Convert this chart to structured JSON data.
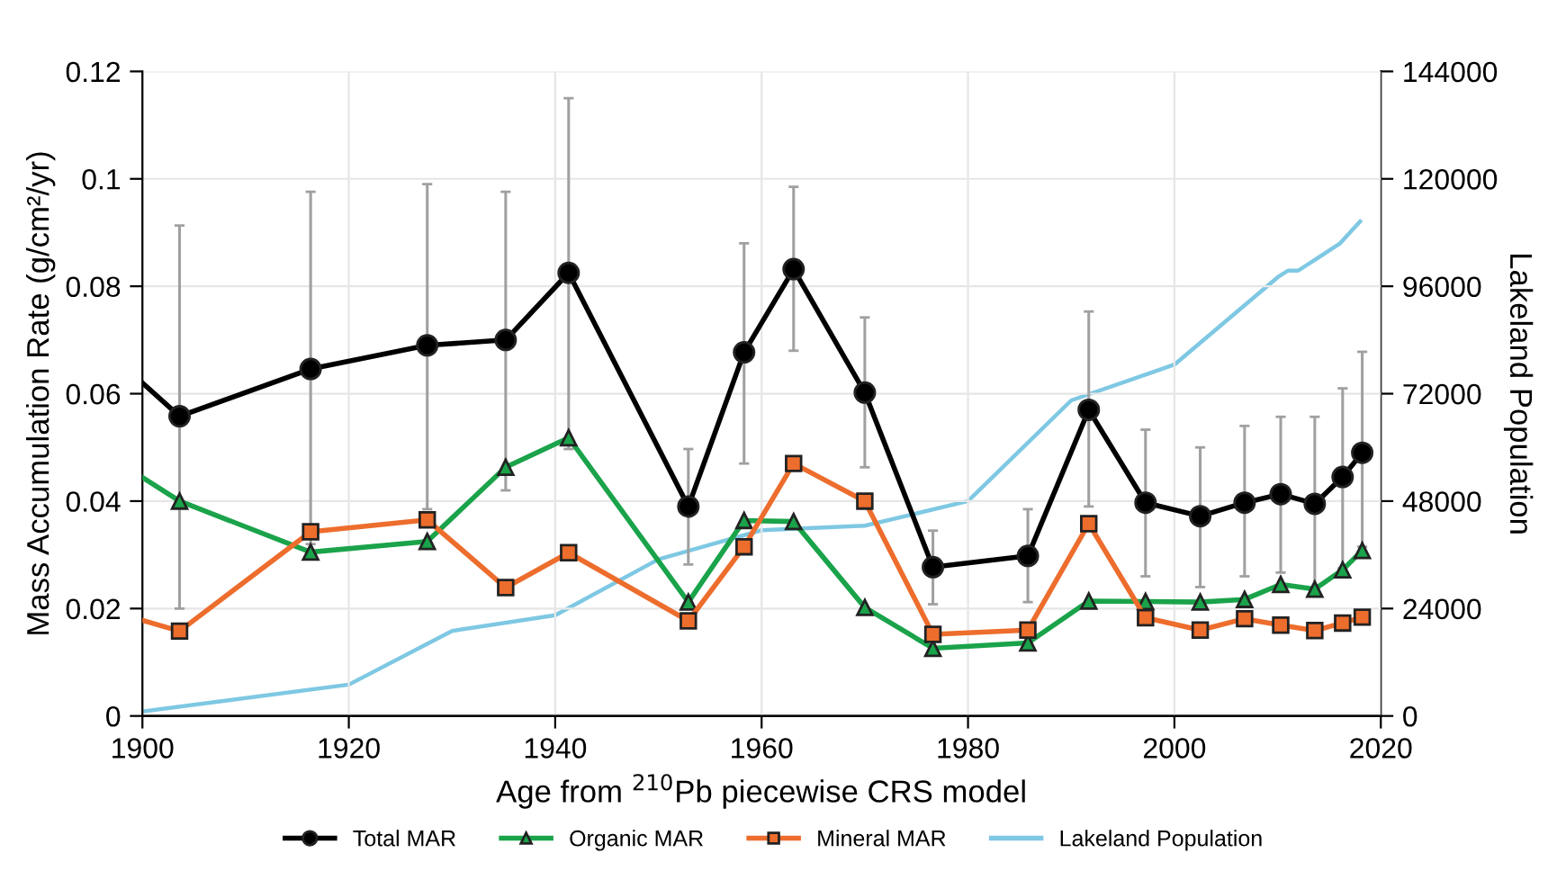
{
  "chart_data": {
    "type": "line",
    "xlabel": "Age from $^{210}$Pb piecewise CRS model",
    "ylabel": "Mass Accumulation Rate (g/cm²/yr)",
    "y2label": "Lakeland Population",
    "xlim": [
      1900,
      2020
    ],
    "xticks": [
      1900,
      1920,
      1940,
      1960,
      1980,
      2000,
      2020
    ],
    "ylim": [
      0,
      0.12
    ],
    "yticks": [
      0,
      0.02,
      0.04,
      0.06,
      0.08,
      0.1,
      0.12
    ],
    "y2lim": [
      0,
      144000
    ],
    "y2ticks": [
      0,
      24000,
      48000,
      72000,
      96000,
      120000,
      144000
    ],
    "grid": true,
    "legend": "bottom",
    "series": [
      {
        "name": "Total MAR",
        "color": "#000000",
        "marker": "circle",
        "x": [
          1900,
          1903.6,
          1916.3,
          1927.6,
          1935.2,
          1941.3,
          1952.9,
          1958.3,
          1963.1,
          1970.0,
          1976.6,
          1985.8,
          1991.7,
          1997.2,
          2002.5,
          2006.8,
          2010.3,
          2013.6,
          2016.3,
          2018.2
        ],
        "values": [
          0.062,
          0.0558,
          0.0646,
          0.069,
          0.07,
          0.0825,
          0.039,
          0.0677,
          0.0832,
          0.0602,
          0.0277,
          0.0298,
          0.057,
          0.0397,
          0.0372,
          0.0397,
          0.0413,
          0.0395,
          0.0445,
          0.049
        ],
        "errors": [
          null,
          [
            0.02,
            0.0913
          ],
          [
            0.032,
            0.0976
          ],
          [
            0.0385,
            0.099
          ],
          [
            0.042,
            0.0976
          ],
          [
            0.0497,
            0.115
          ],
          [
            0.0282,
            0.0497
          ],
          [
            0.047,
            0.088
          ],
          [
            0.068,
            0.0985
          ],
          [
            0.0463,
            0.0742
          ],
          [
            0.0208,
            0.0345
          ],
          [
            0.0212,
            0.0385
          ],
          [
            0.039,
            0.0753
          ],
          [
            0.026,
            0.0533
          ],
          [
            0.024,
            0.05
          ],
          [
            0.026,
            0.054
          ],
          [
            0.0267,
            0.0557
          ],
          [
            0.0235,
            0.0557
          ],
          [
            0.0275,
            0.061
          ],
          [
            0.0315,
            0.0678
          ]
        ]
      },
      {
        "name": "Organic MAR",
        "color": "#1aa34a",
        "marker": "triangle",
        "x": [
          1900,
          1903.6,
          1916.3,
          1927.6,
          1935.2,
          1941.3,
          1952.9,
          1958.3,
          1963.1,
          1970.0,
          1976.6,
          1985.8,
          1991.7,
          1997.2,
          2002.5,
          2006.8,
          2010.3,
          2013.6,
          2016.3,
          2018.2
        ],
        "values": [
          0.0444,
          0.04,
          0.0305,
          0.0325,
          0.0463,
          0.0518,
          0.0212,
          0.0364,
          0.0362,
          0.0202,
          0.0126,
          0.0136,
          0.0214,
          0.0213,
          0.0212,
          0.0217,
          0.0245,
          0.0236,
          0.0272,
          0.0308
        ]
      },
      {
        "name": "Mineral MAR",
        "color": "#ed6d2d",
        "marker": "square",
        "x": [
          1900,
          1903.6,
          1916.3,
          1927.6,
          1935.2,
          1941.3,
          1952.9,
          1958.3,
          1963.1,
          1970.0,
          1976.6,
          1985.8,
          1991.7,
          1997.2,
          2002.5,
          2006.8,
          2010.3,
          2013.6,
          2016.3,
          2018.2
        ],
        "values": [
          0.0178,
          0.0158,
          0.0343,
          0.0365,
          0.0239,
          0.0304,
          0.0177,
          0.0315,
          0.047,
          0.04,
          0.0152,
          0.016,
          0.0358,
          0.0183,
          0.016,
          0.0181,
          0.0169,
          0.0159,
          0.0173,
          0.0184
        ]
      },
      {
        "name": "Lakeland Population",
        "color": "#7ec8e3",
        "marker": "none",
        "axis": "y2",
        "x": [
          1900,
          1920,
          1930,
          1940,
          1950,
          1960,
          1970,
          1980,
          1990,
          2000,
          2010,
          2011,
          2012,
          2014,
          2016,
          2018
        ],
        "values": [
          1000,
          7000,
          19000,
          22500,
          35000,
          41500,
          42500,
          48000,
          70500,
          78500,
          98000,
          99500,
          99500,
          102500,
          105500,
          110500
        ]
      }
    ]
  }
}
